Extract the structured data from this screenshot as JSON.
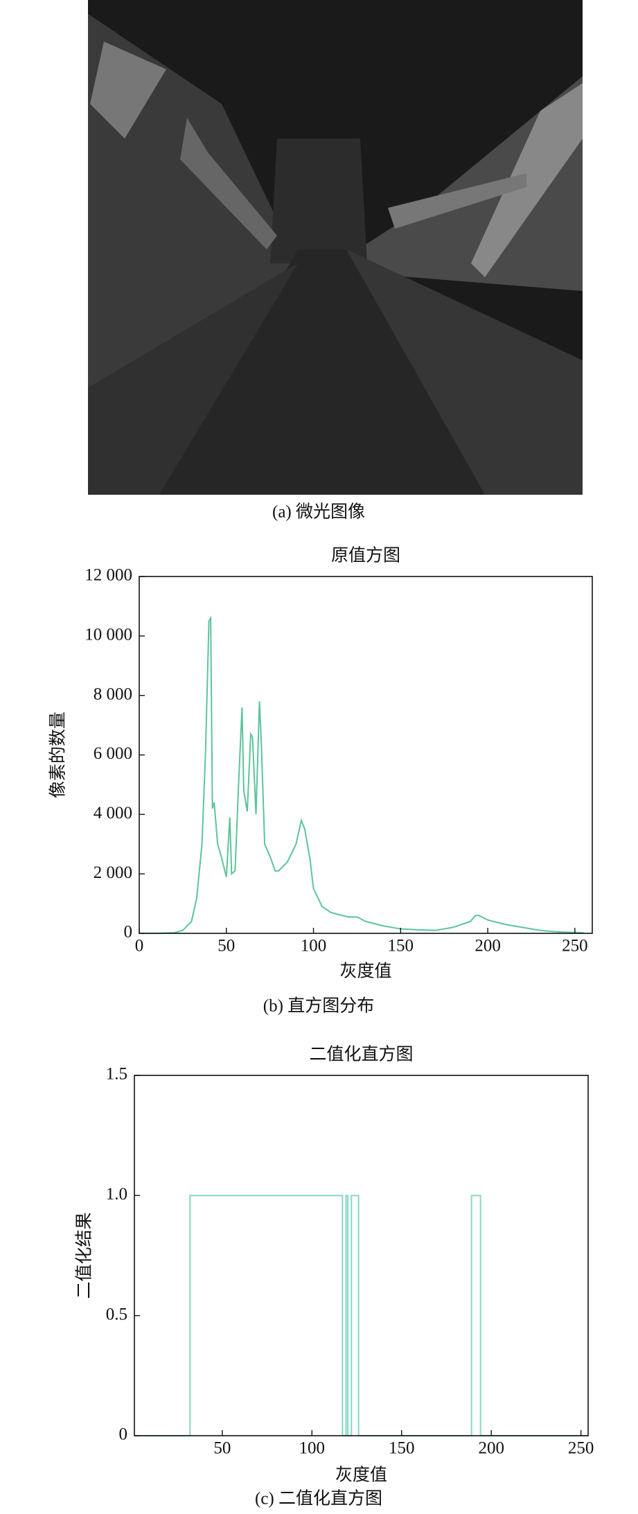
{
  "image": {
    "caption": "(a) 微光图像"
  },
  "chart_data": [
    {
      "type": "line",
      "title": "原值方图",
      "caption": "(b) 直方图分布",
      "x_label": "灰度值",
      "y_label": "像素的数量",
      "x": [
        0,
        10,
        20,
        25,
        30,
        33,
        36,
        38,
        40,
        41,
        42,
        43,
        45,
        47,
        50,
        52,
        53,
        55,
        57,
        59,
        60,
        62,
        64,
        65,
        67,
        69,
        70,
        72,
        75,
        78,
        80,
        85,
        90,
        93,
        95,
        98,
        100,
        105,
        110,
        120,
        125,
        130,
        140,
        150,
        160,
        170,
        180,
        190,
        193,
        195,
        200,
        210,
        220,
        230,
        240,
        250,
        255
      ],
      "series": [
        {
          "color": "#5cc49a",
          "values": [
            0,
            0,
            20,
            100,
            400,
            1200,
            3000,
            6000,
            10500,
            10600,
            4200,
            4400,
            3000,
            2600,
            1900,
            3900,
            2000,
            2100,
            5000,
            7600,
            4800,
            4100,
            6700,
            6600,
            4000,
            7800,
            6500,
            3000,
            2600,
            2100,
            2100,
            2400,
            3000,
            3800,
            3500,
            2500,
            1500,
            900,
            700,
            550,
            550,
            400,
            250,
            150,
            120,
            100,
            200,
            400,
            600,
            600,
            450,
            300,
            200,
            100,
            50,
            30,
            20
          ]
        }
      ],
      "xlim": [
        0,
        260
      ],
      "xticks": [
        0,
        50,
        100,
        150,
        200,
        250
      ],
      "ylim": [
        0,
        12000
      ],
      "yticks": [
        0,
        {
          "value": 2000,
          "label": "2 000"
        },
        {
          "value": 4000,
          "label": "4 000"
        },
        {
          "value": 6000,
          "label": "6 000"
        },
        {
          "value": 8000,
          "label": "8 000"
        },
        {
          "value": 10000,
          "label": "10 000"
        },
        {
          "value": 12000,
          "label": "12 000"
        }
      ]
    },
    {
      "type": "line",
      "title": "二值化直方图",
      "caption": "(c) 二值化直方图",
      "x_label": "灰度值",
      "y_label": "二值化结果",
      "x": [
        1,
        32,
        32,
        117,
        117,
        119,
        119,
        120,
        120,
        122,
        122,
        126,
        126,
        189,
        189,
        194,
        194,
        254
      ],
      "series": [
        {
          "color": "#86d6c6",
          "values": [
            0,
            0,
            1,
            1,
            0,
            0,
            1,
            1,
            0,
            0,
            1,
            1,
            0,
            0,
            1,
            1,
            0,
            0
          ]
        }
      ],
      "xlim": [
        1,
        254
      ],
      "xticks": [
        50,
        100,
        150,
        200,
        250
      ],
      "ylim": [
        0,
        1.5
      ],
      "yticks": [
        0,
        0.5,
        {
          "value": 1,
          "label": "1.0"
        },
        1.5
      ]
    }
  ]
}
